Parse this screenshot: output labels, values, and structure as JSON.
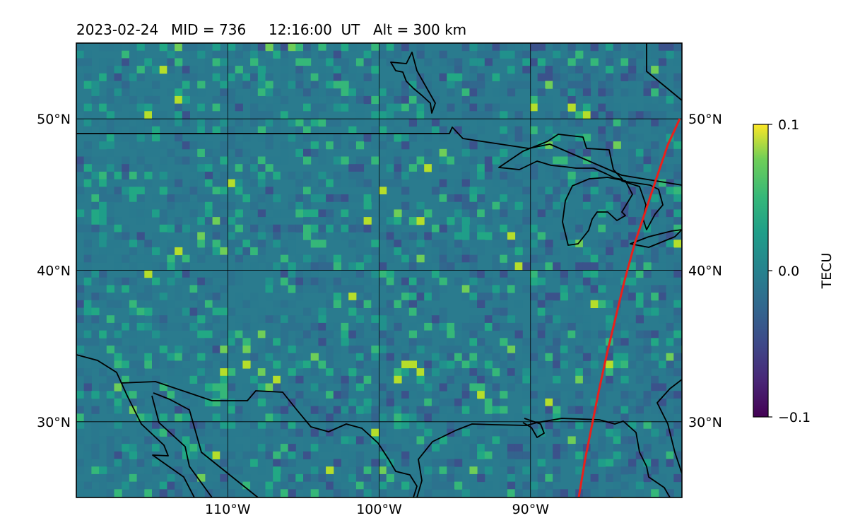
{
  "title": {
    "date": "2023-02-24",
    "mid": "MID = 736",
    "time": "12:16:00  UT",
    "alt": "Alt = 300 km"
  },
  "map": {
    "projection": "equirectangular",
    "lon_range": [
      -120,
      -80
    ],
    "lat_range": [
      25,
      55
    ],
    "lat_ticks": [
      {
        "value": 50,
        "label": "50°N"
      },
      {
        "value": 40,
        "label": "40°N"
      },
      {
        "value": 30,
        "label": "30°N"
      }
    ],
    "lon_ticks": [
      {
        "value": -110,
        "label": "110°W"
      },
      {
        "value": -100,
        "label": "100°W"
      },
      {
        "value": -90,
        "label": "90°W"
      }
    ],
    "gridlines": true,
    "colormap": "viridis",
    "terminator_color": "#e8211c",
    "coastline_color": "#000000"
  },
  "colorbar": {
    "label": "TECU",
    "min": -0.1,
    "max": 0.1,
    "ticks": [
      {
        "value": 0.1,
        "label": "0.1"
      },
      {
        "value": 0.0,
        "label": "0.0"
      },
      {
        "value": -0.1,
        "label": "−0.1"
      }
    ]
  }
}
